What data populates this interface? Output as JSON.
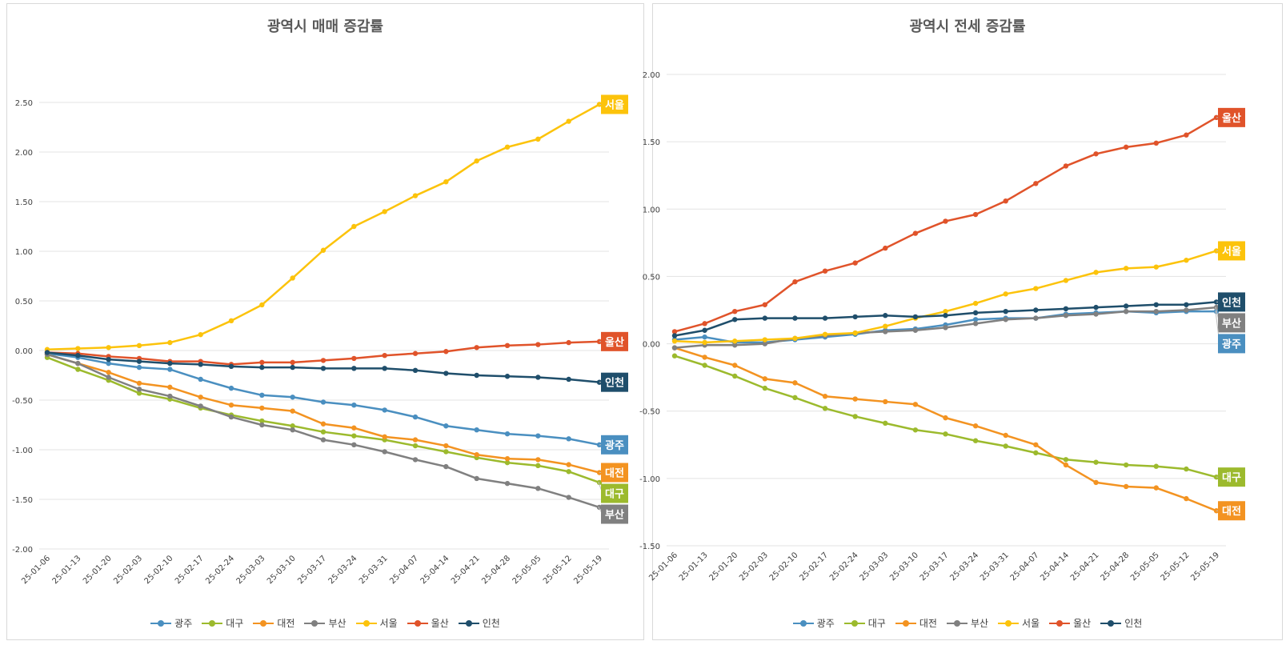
{
  "chart_data": [
    {
      "type": "line",
      "title": "광역시 매매 증감률",
      "categories": [
        "25-01-06",
        "25-01-13",
        "25-01-20",
        "25-02-03",
        "25-02-10",
        "25-02-17",
        "25-02-24",
        "25-03-03",
        "25-03-10",
        "25-03-17",
        "25-03-24",
        "25-03-31",
        "25-04-07",
        "25-04-14",
        "25-04-21",
        "25-04-28",
        "25-05-05",
        "25-05-12",
        "25-05-19"
      ],
      "ylim": [
        -2.0,
        2.5
      ],
      "yticks": [
        "2.50",
        "2.00",
        "1.50",
        "1.00",
        "0.50",
        "0.00",
        "-0.50",
        "-1.00",
        "-1.50",
        "-2.00"
      ],
      "grid": true,
      "legend_position": "bottom",
      "series": [
        {
          "name": "광주",
          "color": "#4a8fc0",
          "values": [
            -0.03,
            -0.07,
            -0.13,
            -0.17,
            -0.19,
            -0.29,
            -0.38,
            -0.45,
            -0.47,
            -0.52,
            -0.55,
            -0.6,
            -0.67,
            -0.76,
            -0.8,
            -0.84,
            -0.86,
            -0.89,
            -0.95
          ]
        },
        {
          "name": "대구",
          "color": "#9cba2d",
          "values": [
            -0.07,
            -0.19,
            -0.3,
            -0.43,
            -0.49,
            -0.58,
            -0.65,
            -0.71,
            -0.76,
            -0.82,
            -0.86,
            -0.9,
            -0.96,
            -1.02,
            -1.08,
            -1.13,
            -1.16,
            -1.22,
            -1.33
          ]
        },
        {
          "name": "대전",
          "color": "#f39321",
          "values": [
            -0.04,
            -0.13,
            -0.22,
            -0.33,
            -0.37,
            -0.47,
            -0.55,
            -0.58,
            -0.61,
            -0.74,
            -0.78,
            -0.87,
            -0.9,
            -0.96,
            -1.05,
            -1.09,
            -1.1,
            -1.15,
            -1.23
          ]
        },
        {
          "name": "부산",
          "color": "#808080",
          "values": [
            -0.04,
            -0.13,
            -0.27,
            -0.39,
            -0.46,
            -0.56,
            -0.67,
            -0.75,
            -0.8,
            -0.9,
            -0.95,
            -1.02,
            -1.1,
            -1.17,
            -1.29,
            -1.34,
            -1.39,
            -1.48,
            -1.58
          ]
        },
        {
          "name": "서울",
          "color": "#fcc30b",
          "values": [
            0.01,
            0.02,
            0.03,
            0.05,
            0.08,
            0.16,
            0.3,
            0.46,
            0.73,
            1.01,
            1.25,
            1.4,
            1.56,
            1.7,
            1.91,
            2.05,
            2.13,
            2.31,
            2.48
          ]
        },
        {
          "name": "울산",
          "color": "#e0532a",
          "values": [
            -0.02,
            -0.03,
            -0.06,
            -0.08,
            -0.11,
            -0.11,
            -0.14,
            -0.12,
            -0.12,
            -0.1,
            -0.08,
            -0.05,
            -0.03,
            -0.01,
            0.03,
            0.05,
            0.06,
            0.08,
            0.09
          ]
        },
        {
          "name": "인천",
          "color": "#1f4e6b",
          "values": [
            -0.02,
            -0.05,
            -0.09,
            -0.11,
            -0.13,
            -0.14,
            -0.16,
            -0.17,
            -0.17,
            -0.18,
            -0.18,
            -0.18,
            -0.2,
            -0.23,
            -0.25,
            -0.26,
            -0.27,
            -0.29,
            -0.32
          ]
        }
      ],
      "end_labels": [
        {
          "name": "서울",
          "color": "#fcc30b"
        },
        {
          "name": "울산",
          "color": "#e0532a"
        },
        {
          "name": "인천",
          "color": "#1f4e6b"
        },
        {
          "name": "광주",
          "color": "#4a8fc0"
        },
        {
          "name": "대전",
          "color": "#f39321"
        },
        {
          "name": "대구",
          "color": "#9cba2d"
        },
        {
          "name": "부산",
          "color": "#808080"
        }
      ]
    },
    {
      "type": "line",
      "title": "광역시 전세 증감률",
      "categories": [
        "25-01-06",
        "25-01-13",
        "25-01-20",
        "25-02-03",
        "25-02-10",
        "25-02-17",
        "25-02-24",
        "25-03-03",
        "25-03-10",
        "25-03-17",
        "25-03-24",
        "25-03-31",
        "25-04-07",
        "25-04-14",
        "25-04-21",
        "25-04-28",
        "25-05-05",
        "25-05-12",
        "25-05-19"
      ],
      "ylim": [
        -1.5,
        2.0
      ],
      "yticks": [
        "2.00",
        "1.50",
        "1.00",
        "0.50",
        "0.00",
        "-0.50",
        "-1.00",
        "-1.50"
      ],
      "grid": true,
      "legend_position": "bottom",
      "series": [
        {
          "name": "광주",
          "color": "#4a8fc0",
          "values": [
            0.03,
            0.05,
            0.01,
            0.01,
            0.03,
            0.05,
            0.07,
            0.1,
            0.11,
            0.14,
            0.18,
            0.19,
            0.19,
            0.22,
            0.23,
            0.24,
            0.23,
            0.24,
            0.24
          ]
        },
        {
          "name": "대구",
          "color": "#9cba2d",
          "values": [
            -0.09,
            -0.16,
            -0.24,
            -0.33,
            -0.4,
            -0.48,
            -0.54,
            -0.59,
            -0.64,
            -0.67,
            -0.72,
            -0.76,
            -0.81,
            -0.86,
            -0.88,
            -0.9,
            -0.91,
            -0.93,
            -0.99
          ]
        },
        {
          "name": "대전",
          "color": "#f39321",
          "values": [
            -0.03,
            -0.1,
            -0.16,
            -0.26,
            -0.29,
            -0.39,
            -0.41,
            -0.43,
            -0.45,
            -0.55,
            -0.61,
            -0.68,
            -0.75,
            -0.9,
            -1.03,
            -1.06,
            -1.07,
            -1.15,
            -1.24
          ]
        },
        {
          "name": "부산",
          "color": "#808080",
          "values": [
            -0.03,
            -0.01,
            -0.01,
            0.0,
            0.04,
            0.06,
            0.08,
            0.09,
            0.1,
            0.12,
            0.15,
            0.18,
            0.19,
            0.21,
            0.22,
            0.24,
            0.24,
            0.25,
            0.27
          ]
        },
        {
          "name": "서울",
          "color": "#fcc30b",
          "values": [
            0.02,
            0.01,
            0.02,
            0.03,
            0.04,
            0.07,
            0.08,
            0.13,
            0.19,
            0.24,
            0.3,
            0.37,
            0.41,
            0.47,
            0.53,
            0.56,
            0.57,
            0.62,
            0.69
          ]
        },
        {
          "name": "울산",
          "color": "#e0532a",
          "values": [
            0.09,
            0.15,
            0.24,
            0.29,
            0.46,
            0.54,
            0.6,
            0.71,
            0.82,
            0.91,
            0.96,
            1.06,
            1.19,
            1.32,
            1.41,
            1.46,
            1.49,
            1.55,
            1.68
          ]
        },
        {
          "name": "인천",
          "color": "#1f4e6b",
          "values": [
            0.06,
            0.1,
            0.18,
            0.19,
            0.19,
            0.19,
            0.2,
            0.21,
            0.2,
            0.21,
            0.23,
            0.24,
            0.25,
            0.26,
            0.27,
            0.28,
            0.29,
            0.29,
            0.31
          ]
        }
      ],
      "end_labels": [
        {
          "name": "울산",
          "color": "#e0532a"
        },
        {
          "name": "서울",
          "color": "#fcc30b"
        },
        {
          "name": "인천",
          "color": "#1f4e6b"
        },
        {
          "name": "부산",
          "color": "#808080"
        },
        {
          "name": "광주",
          "color": "#4a8fc0"
        },
        {
          "name": "대구",
          "color": "#9cba2d"
        },
        {
          "name": "대전",
          "color": "#f39321"
        }
      ]
    }
  ]
}
